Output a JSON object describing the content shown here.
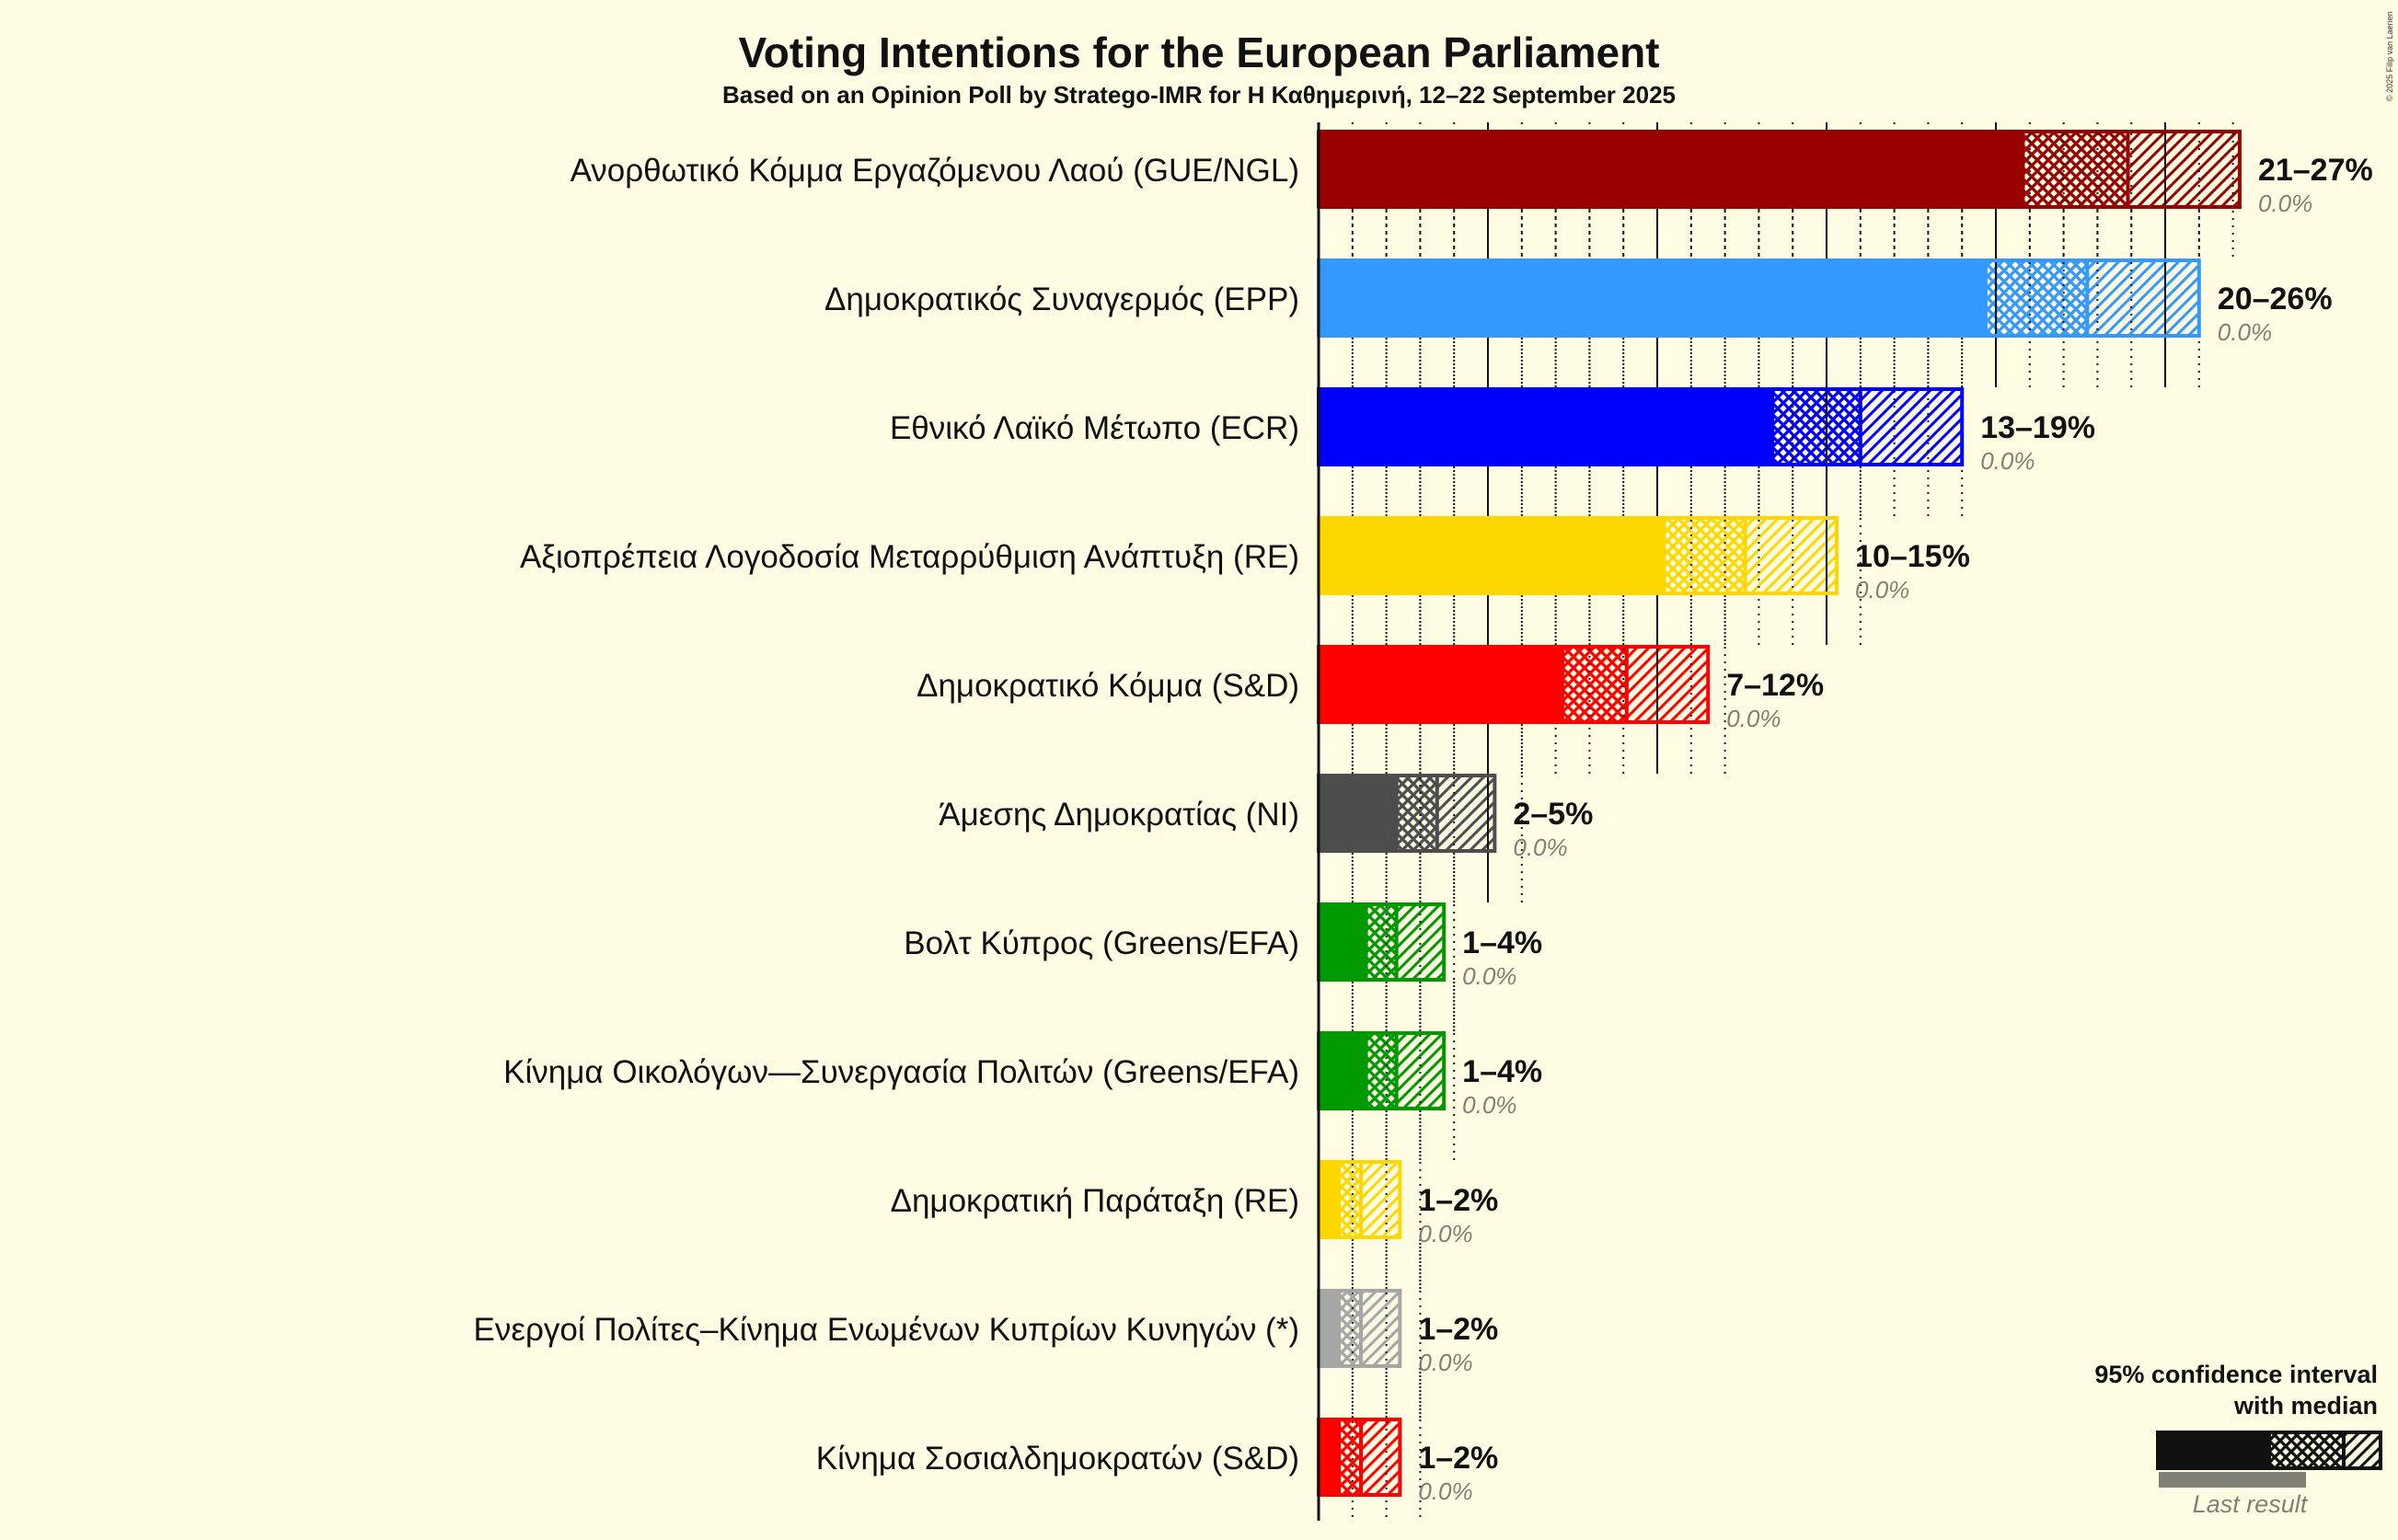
{
  "chart_data": {
    "type": "bar",
    "orientation": "horizontal",
    "title": "Voting Intentions for the European Parliament",
    "subtitle": "Based on an Opinion Poll by Stratego-IMR for Η Καθημερινή, 12–22 September 2025",
    "xlabel": "",
    "ylabel": "",
    "xlim": [
      0,
      28
    ],
    "grid": {
      "major_every": 5,
      "minor_every": 1,
      "major_style": "solid",
      "minor_style": "dotted"
    },
    "categories": [
      "Ανορθωτικό Κόμμα Εργαζόμενου Λαού (GUE/NGL)",
      "Δημοκρατικός Συναγερμός (EPP)",
      "Εθνικό Λαϊκό Μέτωπο (ECR)",
      "Αξιοπρέπεια Λογοδοσία Μεταρρύθμιση Ανάπτυξη (RE)",
      "Δημοκρατικό Κόμμα (S&D)",
      "Άμεσης Δημοκρατίας (NI)",
      "Βολτ Κύπρος (Greens/EFA)",
      "Κίνημα Οικολόγων—Συνεργασία Πολιτών (Greens/EFA)",
      "Δημοκρατική Παράταξη (RE)",
      "Ενεργοί Πολίτες–Κίνημα Ενωμένων Κυπρίων Κυνηγών (*)",
      "Κίνημα Σοσιαλδημοκρατών (S&D)"
    ],
    "series": [
      {
        "name": "CI low",
        "values": [
          20.8,
          19.7,
          13.4,
          10.2,
          7.2,
          2.3,
          1.4,
          1.4,
          0.6,
          0.6,
          0.6
        ]
      },
      {
        "name": "Median",
        "values": [
          23.9,
          22.7,
          16.0,
          12.6,
          9.1,
          3.5,
          2.3,
          2.3,
          1.25,
          1.25,
          1.25
        ]
      },
      {
        "name": "CI high",
        "values": [
          27.2,
          26.0,
          19.0,
          15.3,
          11.5,
          5.2,
          3.7,
          3.7,
          2.4,
          2.4,
          2.4
        ]
      },
      {
        "name": "Last result",
        "values": [
          0.0,
          0.0,
          0.0,
          0.0,
          0.0,
          0.0,
          0.0,
          0.0,
          0.0,
          0.0,
          0.0
        ]
      }
    ],
    "range_labels": [
      "21–27%",
      "20–26%",
      "13–19%",
      "10–15%",
      "7–12%",
      "2–5%",
      "1–4%",
      "1–4%",
      "1–2%",
      "1–2%",
      "1–2%"
    ],
    "last_result_labels": [
      "0.0%",
      "0.0%",
      "0.0%",
      "0.0%",
      "0.0%",
      "0.0%",
      "0.0%",
      "0.0%",
      "0.0%",
      "0.0%",
      "0.0%"
    ],
    "colors": [
      "#990000",
      "#3399FF",
      "#0000FF",
      "#FFD700",
      "#FF0000",
      "#4D4D4D",
      "#009900",
      "#009900",
      "#FFD700",
      "#A6A6A6",
      "#FF0000"
    ],
    "legend": {
      "position": "bottom-right",
      "line1": "95% confidence interval",
      "line2": "with median",
      "last_result": "Last result"
    }
  },
  "copyright": "© 2025 Filip van Laenen"
}
